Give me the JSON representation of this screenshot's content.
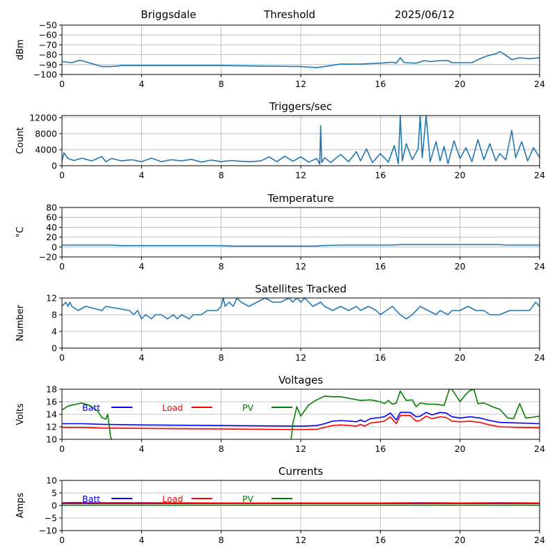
{
  "header": {
    "station": "Briggsdale",
    "mode": "Threshold",
    "date": "2025/06/12"
  },
  "chart_data": [
    {
      "type": "line",
      "title": "",
      "xlabel": "",
      "ylabel": "dBm",
      "xlim": [
        0,
        24
      ],
      "ylim": [
        -100,
        -50
      ],
      "xticks": [
        0,
        4,
        8,
        12,
        16,
        20,
        24
      ],
      "yticks": [
        -100,
        -90,
        -80,
        -70,
        -60,
        -50
      ],
      "grid": true,
      "series": [
        {
          "color": "#1f77b4",
          "x": [
            0,
            0.5,
            0.8,
            1.0,
            1.5,
            2.0,
            2.5,
            3.0,
            5.0,
            8.0,
            10.0,
            12.0,
            12.8,
            13.2,
            13.8,
            14.0,
            15.0,
            16.0,
            16.6,
            16.8,
            17.0,
            17.2,
            17.8,
            18.2,
            18.5,
            19.0,
            19.4,
            19.6,
            19.8,
            20.2,
            20.6,
            21.0,
            21.4,
            21.8,
            22.0,
            22.2,
            22.6,
            23.0,
            23.5,
            24.0
          ],
          "y": [
            -87,
            -88,
            -86,
            -86,
            -89,
            -92,
            -92,
            -91,
            -91,
            -91,
            -91.5,
            -92,
            -93,
            -92,
            -90,
            -89.5,
            -89.5,
            -88.5,
            -87.5,
            -88.5,
            -83,
            -88,
            -88.5,
            -86,
            -87,
            -86,
            -86,
            -88,
            -88,
            -88,
            -88,
            -84,
            -81,
            -79,
            -77,
            -79,
            -85,
            -83,
            -84,
            -83
          ]
        }
      ]
    },
    {
      "type": "line",
      "title": "Triggers/sec",
      "xlabel": "",
      "ylabel": "Count",
      "xlim": [
        0,
        24
      ],
      "ylim": [
        0,
        12500
      ],
      "xticks": [
        0,
        4,
        8,
        12,
        16,
        20,
        24
      ],
      "yticks": [
        0,
        4000,
        8000,
        12000
      ],
      "grid": true,
      "series": [
        {
          "color": "#1f77b4",
          "x": [
            0,
            0.1,
            0.3,
            0.6,
            1.0,
            1.5,
            2.0,
            2.2,
            2.5,
            3.0,
            3.5,
            4.0,
            4.5,
            5.0,
            5.5,
            6.0,
            6.5,
            7.0,
            7.5,
            8.0,
            8.5,
            9.0,
            9.5,
            10.0,
            10.4,
            10.8,
            11.2,
            11.6,
            12.0,
            12.4,
            12.8,
            12.95,
            13.0,
            13.05,
            13.2,
            13.5,
            14.0,
            14.4,
            14.8,
            15.0,
            15.3,
            15.6,
            16.0,
            16.4,
            16.7,
            16.9,
            17.0,
            17.1,
            17.3,
            17.6,
            17.9,
            18.0,
            18.1,
            18.3,
            18.5,
            18.8,
            19.0,
            19.2,
            19.4,
            19.7,
            20.0,
            20.3,
            20.6,
            20.9,
            21.2,
            21.5,
            21.8,
            22.0,
            22.3,
            22.6,
            22.8,
            23.1,
            23.4,
            23.7,
            24.0
          ],
          "y": [
            1200,
            3200,
            1800,
            1300,
            1900,
            1200,
            2300,
            1000,
            1800,
            1200,
            1500,
            1000,
            1900,
            1000,
            1500,
            1200,
            1600,
            900,
            1400,
            1000,
            1300,
            1100,
            1000,
            1200,
            2200,
            1000,
            2400,
            1100,
            2200,
            900,
            1800,
            400,
            10000,
            800,
            2000,
            800,
            2800,
            1000,
            3500,
            1200,
            4200,
            800,
            3000,
            900,
            5000,
            500,
            12500,
            1200,
            5500,
            1500,
            4200,
            12500,
            2000,
            12500,
            1000,
            6000,
            1200,
            4800,
            500,
            6200,
            1800,
            4500,
            1000,
            6500,
            1500,
            5500,
            1200,
            3000,
            1500,
            8800,
            2000,
            6000,
            1200,
            4500,
            2000
          ]
        }
      ]
    },
    {
      "type": "line",
      "title": "Temperature",
      "xlabel": "",
      "ylabel": "°C",
      "xlim": [
        0,
        24
      ],
      "ylim": [
        -20,
        80
      ],
      "xticks": [
        0,
        4,
        8,
        12,
        16,
        20,
        24
      ],
      "yticks": [
        -20,
        0,
        20,
        40,
        60,
        80
      ],
      "grid": true,
      "series": [
        {
          "color": "#1f77b4",
          "x": [
            0,
            1.0,
            2.5,
            3.0,
            5.0,
            8.0,
            8.6,
            10.0,
            12.0,
            12.8,
            13.0,
            14.0,
            16.0,
            16.5,
            17.0,
            20.0,
            22.0,
            22.3,
            24.0
          ],
          "y": [
            4,
            4,
            4,
            3,
            3,
            3,
            2,
            2,
            2,
            2,
            3,
            4,
            4,
            4,
            5,
            5,
            5,
            4,
            4
          ]
        }
      ]
    },
    {
      "type": "line",
      "title": "Satellites Tracked",
      "xlabel": "",
      "ylabel": "Number",
      "xlim": [
        0,
        24
      ],
      "ylim": [
        0,
        12
      ],
      "xticks": [
        0,
        4,
        8,
        12,
        16,
        20,
        24
      ],
      "yticks": [
        0,
        4,
        8,
        12
      ],
      "grid": true,
      "series": [
        {
          "color": "#1f77b4",
          "x": [
            0,
            0.2,
            0.3,
            0.4,
            0.5,
            0.8,
            1.2,
            2.0,
            2.2,
            3.4,
            3.6,
            3.8,
            4.0,
            4.2,
            4.5,
            4.7,
            5.0,
            5.3,
            5.6,
            5.8,
            6.0,
            6.4,
            6.6,
            7.0,
            7.3,
            7.8,
            8.0,
            8.1,
            8.2,
            8.4,
            8.6,
            8.8,
            9.0,
            9.4,
            9.8,
            10.2,
            10.6,
            11.0,
            11.4,
            11.6,
            11.8,
            12.0,
            12.2,
            12.6,
            13.0,
            13.2,
            13.6,
            14.0,
            14.4,
            14.8,
            15.0,
            15.4,
            15.8,
            16.0,
            16.3,
            16.6,
            16.8,
            17.0,
            17.3,
            17.6,
            18.0,
            18.4,
            18.8,
            19.0,
            19.4,
            19.6,
            20.0,
            20.4,
            20.8,
            21.2,
            21.5,
            22.0,
            22.5,
            23.0,
            23.5,
            23.8,
            24.0
          ],
          "y": [
            10,
            11,
            10,
            11,
            10,
            9,
            10,
            9,
            10,
            9,
            8,
            9,
            7,
            8,
            7,
            8,
            8,
            7,
            8,
            7,
            8,
            7,
            8,
            8,
            9,
            9,
            10,
            12,
            10,
            11,
            10,
            12,
            11,
            10,
            11,
            12,
            11,
            11,
            12,
            11,
            12,
            11,
            12,
            10,
            11,
            10,
            9,
            10,
            9,
            10,
            9,
            10,
            9,
            8,
            9,
            10,
            9,
            8,
            7,
            8,
            10,
            9,
            8,
            9,
            8,
            9,
            9,
            10,
            9,
            9,
            8,
            8,
            9,
            9,
            9,
            11,
            10
          ]
        }
      ]
    },
    {
      "type": "line",
      "title": "Voltages",
      "xlabel": "",
      "ylabel": "Volts",
      "xlim": [
        0,
        24
      ],
      "ylim": [
        10,
        18
      ],
      "xticks": [
        0,
        4,
        8,
        12,
        16,
        20,
        24
      ],
      "yticks": [
        10,
        12,
        14,
        16,
        18
      ],
      "grid": true,
      "legend": "top-left, horizontal",
      "series": [
        {
          "name": "Batt",
          "color": "#0000ff",
          "x": [
            0,
            1.0,
            2.0,
            4.0,
            8.0,
            12.0,
            12.8,
            13.2,
            13.6,
            14.0,
            14.5,
            14.8,
            15.0,
            15.2,
            15.5,
            16.0,
            16.2,
            16.5,
            16.8,
            17.0,
            17.5,
            17.8,
            18.0,
            18.3,
            18.6,
            19.0,
            19.3,
            19.6,
            20.0,
            20.5,
            21.0,
            21.5,
            22.0,
            23.0,
            24.0
          ],
          "y": [
            12.5,
            12.5,
            12.4,
            12.3,
            12.2,
            12.1,
            12.2,
            12.5,
            12.9,
            13.0,
            12.9,
            12.8,
            13.1,
            12.8,
            13.3,
            13.5,
            13.6,
            14.2,
            13.1,
            14.3,
            14.3,
            13.6,
            13.7,
            14.3,
            13.9,
            14.3,
            14.2,
            13.6,
            13.4,
            13.6,
            13.4,
            13.0,
            12.7,
            12.6,
            12.5
          ]
        },
        {
          "name": "Load",
          "color": "#ff0000",
          "x": [
            0,
            1.0,
            2.0,
            4.0,
            8.0,
            12.0,
            12.8,
            13.2,
            13.6,
            14.0,
            14.5,
            14.8,
            15.0,
            15.2,
            15.5,
            16.0,
            16.2,
            16.5,
            16.8,
            17.0,
            17.5,
            17.8,
            18.0,
            18.3,
            18.6,
            19.0,
            19.3,
            19.6,
            20.0,
            20.5,
            21.0,
            21.5,
            22.0,
            23.0,
            24.0
          ],
          "y": [
            11.9,
            11.9,
            11.8,
            11.75,
            11.65,
            11.55,
            11.6,
            11.9,
            12.2,
            12.3,
            12.2,
            12.1,
            12.4,
            12.1,
            12.6,
            12.8,
            12.9,
            13.6,
            12.5,
            13.8,
            13.8,
            12.9,
            13.0,
            13.7,
            13.3,
            13.6,
            13.5,
            12.9,
            12.8,
            12.9,
            12.7,
            12.3,
            12.0,
            11.9,
            11.85
          ]
        },
        {
          "name": "PV",
          "color": "#008000",
          "x": [
            0,
            0.3,
            0.7,
            1.0,
            1.4,
            1.8,
            2.0,
            2.2,
            2.3,
            2.45,
            2.6,
            11.5,
            11.6,
            11.8,
            12.0,
            12.4,
            12.8,
            13.2,
            13.6,
            14.0,
            14.5,
            15.0,
            15.5,
            16.0,
            16.2,
            16.4,
            16.6,
            16.8,
            17.0,
            17.3,
            17.6,
            17.8,
            18.0,
            18.4,
            18.8,
            19.2,
            19.5,
            19.7,
            20.0,
            20.3,
            20.5,
            20.7,
            20.9,
            21.2,
            21.5,
            21.8,
            22.0,
            22.4,
            22.7,
            23.0,
            23.3,
            23.6,
            24.0
          ],
          "y": [
            14.7,
            15.3,
            15.6,
            15.8,
            15.4,
            14.5,
            13.5,
            13.2,
            14.0,
            10.3,
            9.5,
            9.5,
            12.5,
            15.2,
            13.7,
            15.5,
            16.3,
            16.9,
            16.8,
            16.8,
            16.5,
            16.2,
            16.3,
            16.0,
            15.7,
            16.2,
            15.6,
            15.8,
            17.7,
            16.2,
            16.3,
            15.2,
            15.8,
            15.6,
            15.6,
            15.4,
            18.3,
            17.5,
            16.0,
            17.2,
            17.8,
            18.0,
            15.7,
            15.8,
            15.4,
            15.0,
            14.8,
            13.4,
            13.3,
            15.7,
            13.4,
            13.5,
            13.7
          ]
        }
      ]
    },
    {
      "type": "line",
      "title": "Currents",
      "xlabel": "",
      "ylabel": "Amps",
      "xlim": [
        0,
        24
      ],
      "ylim": [
        -10,
        10
      ],
      "xticks": [
        0,
        4,
        8,
        12,
        16,
        20,
        24
      ],
      "yticks": [
        -10,
        -5,
        0,
        5,
        10
      ],
      "grid": true,
      "legend": "top-left, horizontal",
      "series": [
        {
          "name": "Batt",
          "color": "#0000ff",
          "x": [
            0,
            4,
            8,
            12,
            16,
            20,
            24
          ],
          "y": [
            0.8,
            0.8,
            0.8,
            0.8,
            0.8,
            0.8,
            0.8
          ]
        },
        {
          "name": "Load",
          "color": "#ff0000",
          "x": [
            0,
            0.5,
            2.0,
            4,
            8,
            12,
            16,
            18,
            20,
            22,
            24
          ],
          "y": [
            1.1,
            1.2,
            1.1,
            1.1,
            1.0,
            1.0,
            1.0,
            1.1,
            1.0,
            1.1,
            1.0
          ]
        },
        {
          "name": "PV",
          "color": "#008000",
          "x": [
            0,
            4,
            8,
            12,
            16,
            20,
            24
          ],
          "y": [
            0.1,
            0.1,
            0.1,
            0.1,
            0.1,
            0.1,
            0.1
          ]
        }
      ]
    }
  ]
}
